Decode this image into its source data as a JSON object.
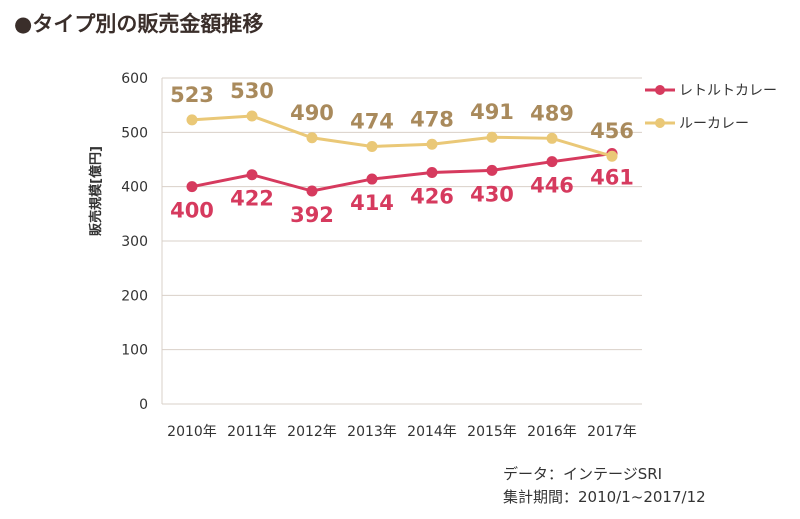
{
  "title": "●タイプ別の販売金額推移",
  "source": "データ：インテージSRI",
  "period": "集計期間：2010/1~2017/12",
  "chart_data": {
    "type": "line",
    "title": "タイプ別の販売金額推移",
    "ylabel": "販売規模[億円]",
    "xlabel": "",
    "categories": [
      "2010年",
      "2011年",
      "2012年",
      "2013年",
      "2014年",
      "2015年",
      "2016年",
      "2017年"
    ],
    "ylim": [
      0,
      600
    ],
    "yticks": [
      0,
      100,
      200,
      300,
      400,
      500,
      600
    ],
    "grid": true,
    "legend": "right",
    "series": [
      {
        "name": "レトルトカレー",
        "color": "#d63a5e",
        "label_color": "#d63a5e",
        "values": [
          400,
          422,
          392,
          414,
          426,
          430,
          446,
          461
        ]
      },
      {
        "name": "ルーカレー",
        "color": "#eac877",
        "label_color": "#a98a5c",
        "values": [
          523,
          530,
          490,
          474,
          478,
          491,
          489,
          456
        ]
      }
    ]
  }
}
